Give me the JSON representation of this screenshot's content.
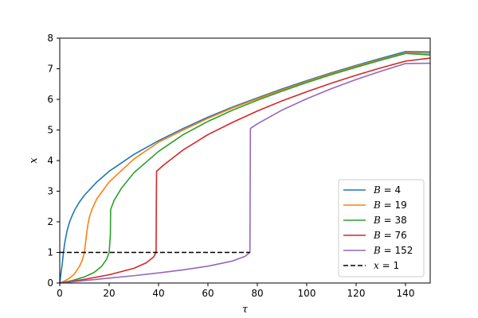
{
  "chart_data": {
    "type": "line",
    "xlabel": "τ",
    "ylabel": "x",
    "xlim": [
      0,
      150
    ],
    "ylim": [
      0,
      8
    ],
    "xticks": [
      0,
      20,
      40,
      60,
      80,
      100,
      120,
      140
    ],
    "yticks": [
      0,
      1,
      2,
      3,
      4,
      5,
      6,
      7,
      8
    ],
    "grid": false,
    "legend_position": "lower-right",
    "series": [
      {
        "name": "B = 4",
        "legend_var": "B",
        "legend_val": "= 4",
        "color": "#1f77b4",
        "style": "solid",
        "x": [
          0,
          0.5,
          1,
          1.5,
          2,
          3,
          4,
          5,
          6,
          8,
          10,
          15,
          20,
          30,
          40,
          50,
          60,
          70,
          80,
          90,
          100,
          110,
          120,
          130,
          140,
          150
        ],
        "y": [
          0,
          0.33,
          0.61,
          1.0,
          1.3,
          1.72,
          2.0,
          2.2,
          2.38,
          2.65,
          2.87,
          3.3,
          3.65,
          4.2,
          4.65,
          5.05,
          5.42,
          5.75,
          6.05,
          6.34,
          6.61,
          6.87,
          7.11,
          7.34,
          7.56,
          7.55
        ]
      },
      {
        "name": "B = 19",
        "legend_var": "B",
        "legend_val": "= 19",
        "color": "#ff7f0e",
        "style": "solid",
        "x": [
          0,
          2,
          4,
          6,
          8,
          9,
          10,
          10.5,
          11,
          11.5,
          12,
          13,
          15,
          20,
          30,
          40,
          50,
          60,
          70,
          80,
          90,
          100,
          110,
          120,
          130,
          140,
          150
        ],
        "y": [
          0,
          0.07,
          0.16,
          0.3,
          0.55,
          0.72,
          1.0,
          1.35,
          1.7,
          1.95,
          2.15,
          2.4,
          2.75,
          3.3,
          4.05,
          4.6,
          5.0,
          5.38,
          5.72,
          6.02,
          6.31,
          6.58,
          6.84,
          7.08,
          7.3,
          7.52,
          7.5
        ]
      },
      {
        "name": "B = 38",
        "legend_var": "B",
        "legend_val": "= 38",
        "color": "#2ca02c",
        "style": "solid",
        "x": [
          0,
          5,
          10,
          14,
          17,
          19,
          20,
          20.5,
          20.6,
          22,
          25,
          30,
          40,
          50,
          60,
          70,
          80,
          90,
          100,
          110,
          120,
          130,
          140,
          150
        ],
        "y": [
          0,
          0.08,
          0.2,
          0.35,
          0.55,
          0.78,
          1.0,
          1.6,
          2.4,
          2.7,
          3.1,
          3.6,
          4.3,
          4.85,
          5.28,
          5.65,
          5.97,
          6.27,
          6.55,
          6.81,
          7.05,
          7.28,
          7.5,
          7.45
        ]
      },
      {
        "name": "B = 76",
        "legend_var": "B",
        "legend_val": "= 76",
        "color": "#d62728",
        "style": "solid",
        "x": [
          0,
          10,
          20,
          30,
          35,
          38,
          39,
          39.1,
          39.2,
          42,
          50,
          60,
          70,
          80,
          90,
          100,
          110,
          120,
          130,
          140,
          150
        ],
        "y": [
          0,
          0.12,
          0.27,
          0.48,
          0.66,
          0.85,
          1.0,
          2.5,
          3.65,
          3.85,
          4.35,
          4.85,
          5.25,
          5.62,
          5.95,
          6.25,
          6.53,
          6.79,
          7.03,
          7.25,
          7.35
        ]
      },
      {
        "name": "B = 152",
        "legend_var": "B",
        "legend_val": "= 152",
        "color": "#9467bd",
        "style": "solid",
        "x": [
          0,
          10,
          20,
          30,
          40,
          50,
          60,
          70,
          75,
          77,
          77.1,
          77.2,
          80,
          90,
          100,
          110,
          120,
          130,
          140,
          150
        ],
        "y": [
          0,
          0.08,
          0.16,
          0.24,
          0.33,
          0.43,
          0.55,
          0.72,
          0.87,
          1.0,
          3.0,
          5.05,
          5.2,
          5.65,
          6.02,
          6.35,
          6.65,
          6.92,
          7.17,
          7.18
        ]
      },
      {
        "name": "x = 1",
        "legend_var": "x",
        "legend_val": "= 1",
        "color": "#000000",
        "style": "dashed",
        "x": [
          0,
          77
        ],
        "y": [
          1,
          1
        ]
      }
    ]
  }
}
